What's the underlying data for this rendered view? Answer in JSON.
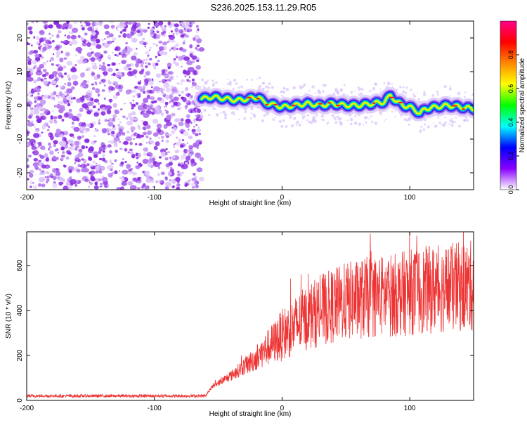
{
  "title": "S236.2025.153.11.29.R05",
  "chart_data": [
    {
      "type": "heatmap",
      "xlabel": "Height of straight line (km)",
      "ylabel": "Frequency (Hz)",
      "xlim": [
        -200,
        150
      ],
      "ylim": [
        -25,
        25
      ],
      "x_ticks": [
        -200,
        -100,
        0,
        100
      ],
      "y_ticks": [
        -20,
        -10,
        0,
        10,
        20
      ],
      "noise_region_x": [
        -200,
        -63
      ],
      "ridge": {
        "x": [
          -62,
          -55,
          -45,
          -35,
          -25,
          -18,
          -15,
          -10,
          -5,
          0,
          10,
          20,
          30,
          40,
          50,
          60,
          70,
          80,
          85,
          90,
          95,
          100,
          105,
          108,
          112,
          120,
          130,
          140,
          150
        ],
        "y": [
          2,
          2.5,
          2,
          1.5,
          2,
          2.5,
          1,
          0.5,
          0,
          -0.5,
          0,
          0.5,
          0,
          0.5,
          0,
          0,
          0.5,
          1,
          3,
          1,
          0,
          -0.5,
          -1.5,
          -2.5,
          -1,
          -0.5,
          0,
          -0.5,
          -1
        ]
      },
      "colorbar": {
        "label": "Normalized spectral amplitude",
        "range": [
          0,
          1
        ],
        "ticks": [
          0.0,
          0.2,
          0.4,
          0.6,
          0.8
        ],
        "tick_labels": [
          "0.0",
          "0.2",
          "0.4",
          "0.6",
          "0.8"
        ],
        "colors": [
          "#ffffff",
          "#8800ff",
          "#0000ff",
          "#00ffff",
          "#00ff00",
          "#ffff00",
          "#ff8800",
          "#ff0000",
          "#ff0088"
        ]
      }
    },
    {
      "type": "line",
      "xlabel": "Height of straight line (km)",
      "ylabel": "SNR (10 * v/v)",
      "xlim": [
        -200,
        150
      ],
      "ylim": [
        0,
        750
      ],
      "x_ticks": [
        -200,
        -100,
        0,
        100
      ],
      "y_ticks": [
        0,
        200,
        400,
        600
      ],
      "color": "#ee3333",
      "envelope_x": [
        -200,
        -60,
        -55,
        -40,
        -30,
        -20,
        -10,
        0,
        10,
        20,
        30,
        40,
        50,
        60,
        70,
        80,
        90,
        100,
        110,
        120,
        130,
        140,
        150
      ],
      "envelope_y": [
        20,
        20,
        60,
        110,
        150,
        190,
        240,
        290,
        330,
        370,
        400,
        420,
        440,
        450,
        460,
        465,
        470,
        480,
        490,
        495,
        500,
        505,
        510
      ]
    }
  ]
}
